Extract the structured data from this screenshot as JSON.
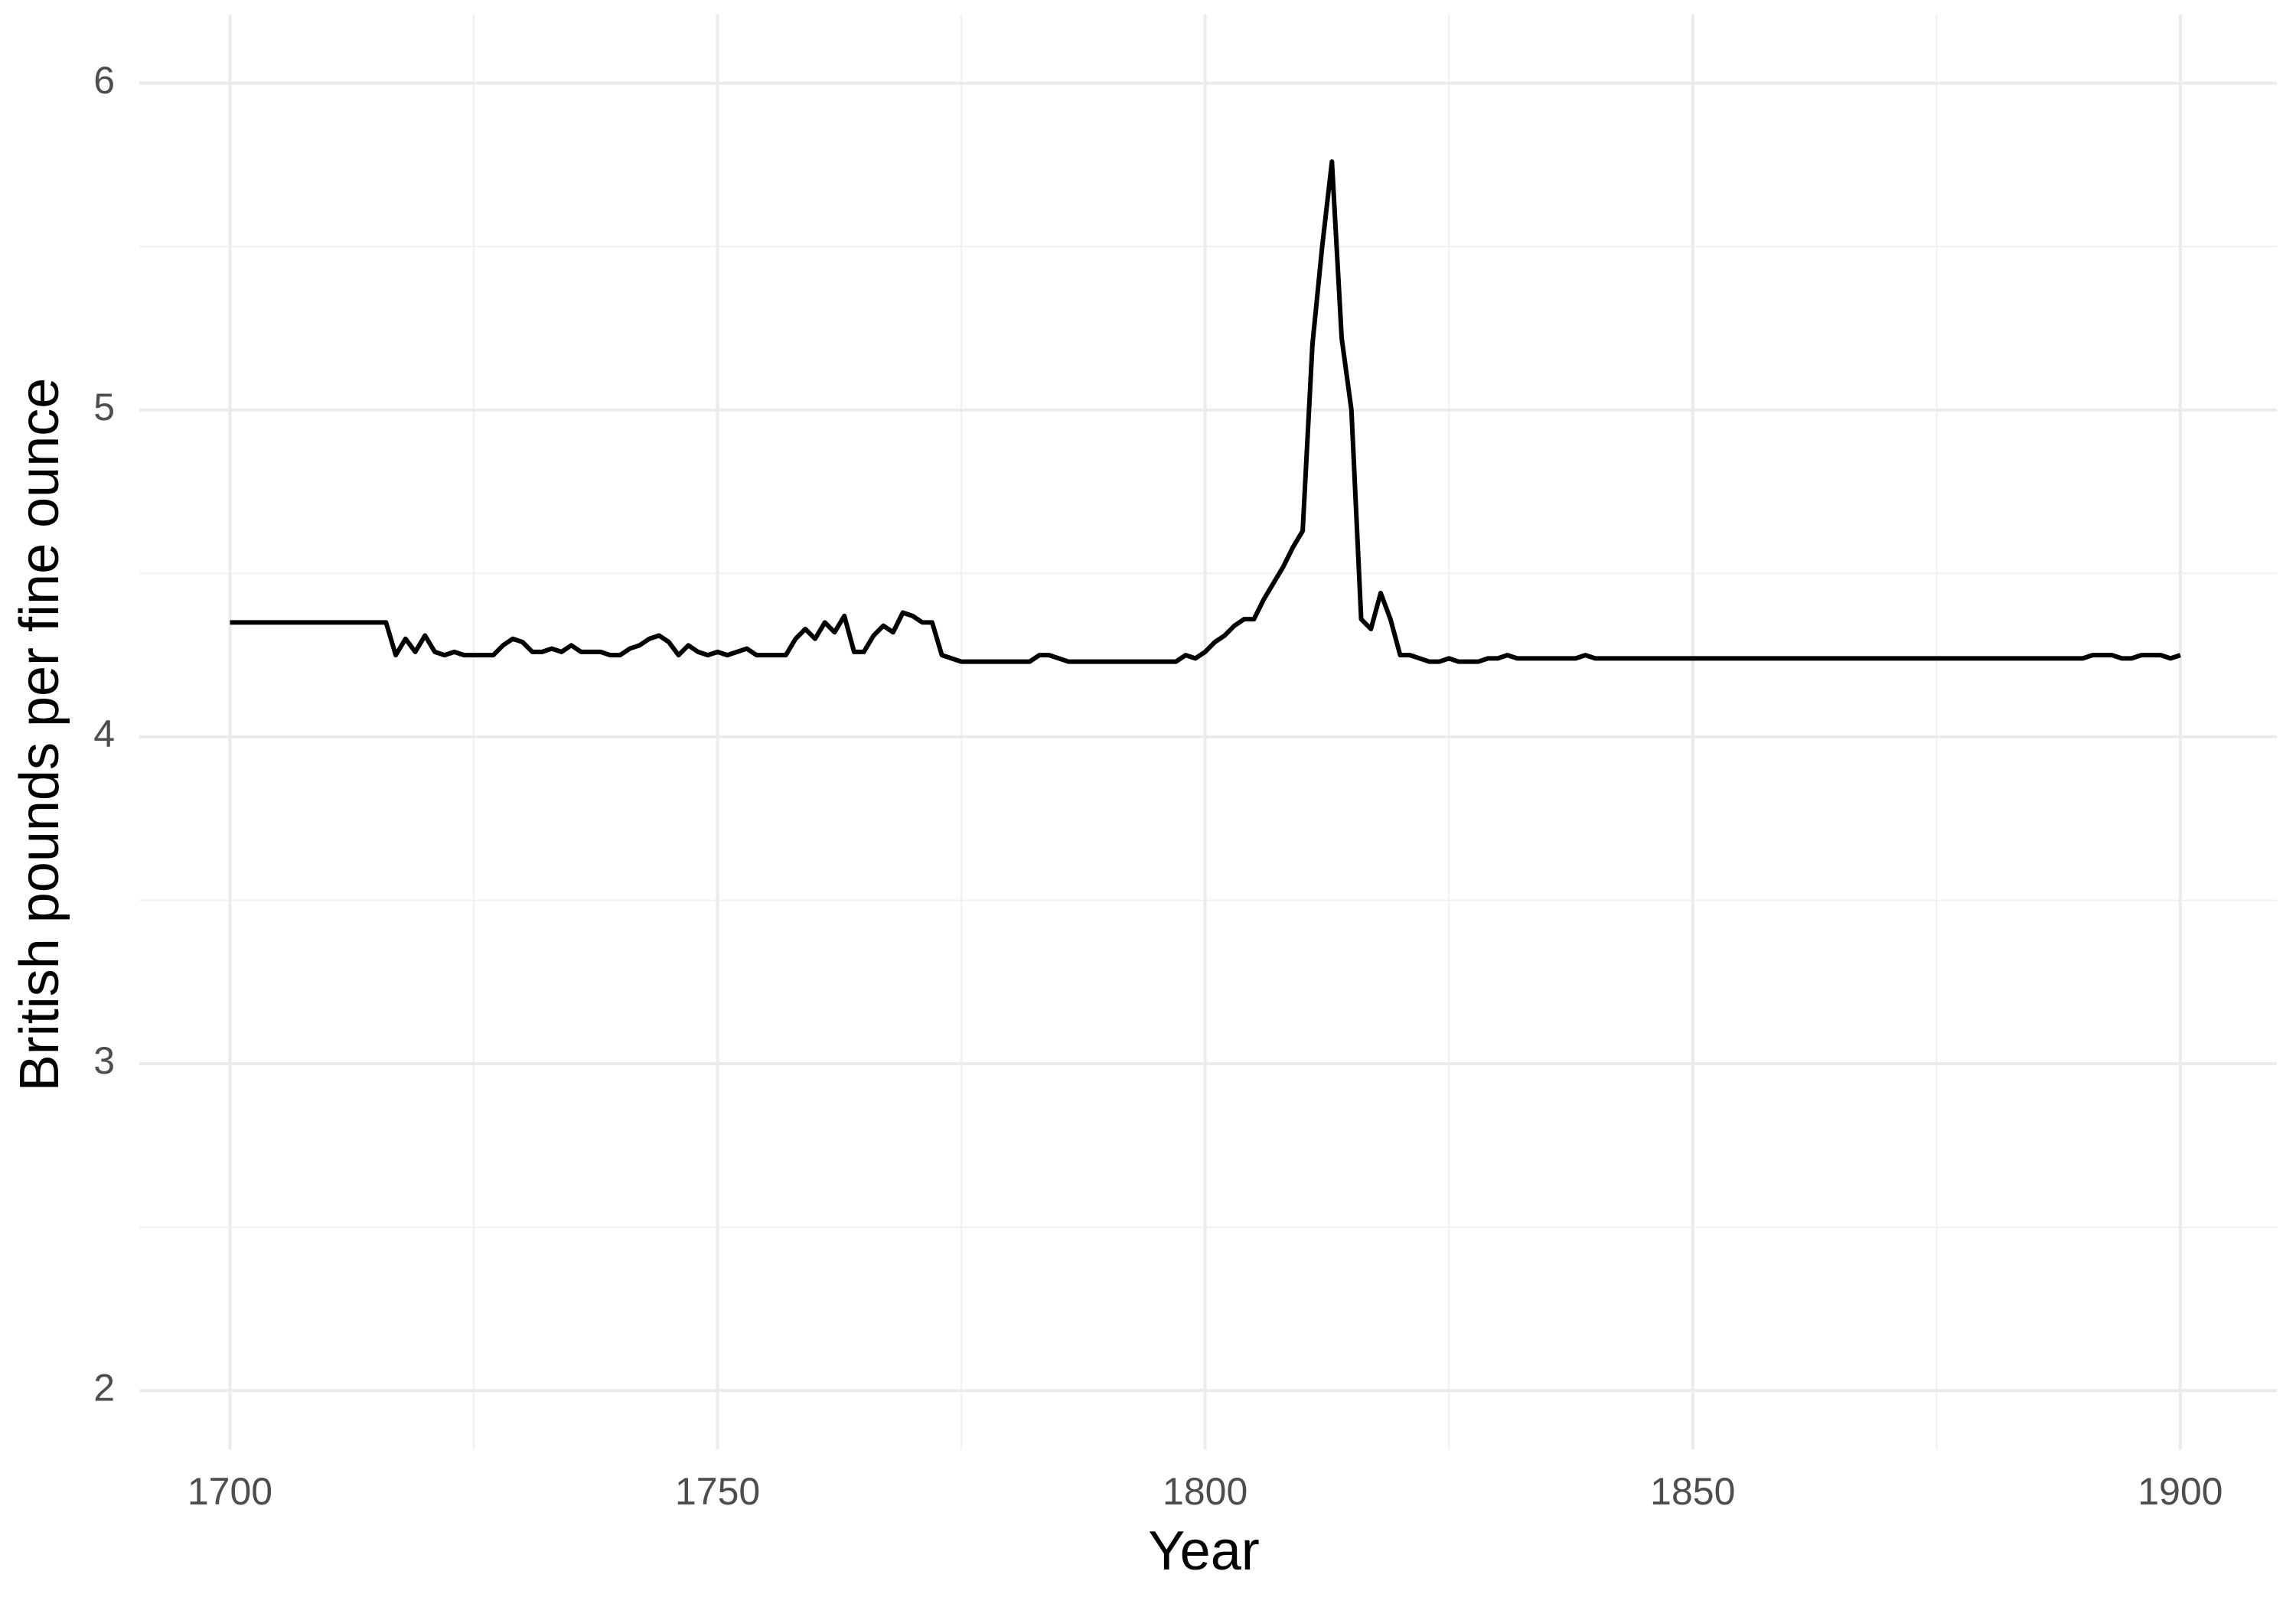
{
  "chart_data": {
    "type": "line",
    "x_label": "Year",
    "y_label": "British pounds per fine ounce",
    "x": [
      1700,
      1701,
      1702,
      1703,
      1704,
      1705,
      1706,
      1707,
      1708,
      1709,
      1710,
      1711,
      1712,
      1713,
      1714,
      1715,
      1716,
      1717,
      1718,
      1719,
      1720,
      1721,
      1722,
      1723,
      1724,
      1725,
      1726,
      1727,
      1728,
      1729,
      1730,
      1731,
      1732,
      1733,
      1734,
      1735,
      1736,
      1737,
      1738,
      1739,
      1740,
      1741,
      1742,
      1743,
      1744,
      1745,
      1746,
      1747,
      1748,
      1749,
      1750,
      1751,
      1752,
      1753,
      1754,
      1755,
      1756,
      1757,
      1758,
      1759,
      1760,
      1761,
      1762,
      1763,
      1764,
      1765,
      1766,
      1767,
      1768,
      1769,
      1770,
      1771,
      1772,
      1773,
      1774,
      1775,
      1776,
      1777,
      1778,
      1779,
      1780,
      1781,
      1782,
      1783,
      1784,
      1785,
      1786,
      1787,
      1788,
      1789,
      1790,
      1791,
      1792,
      1793,
      1794,
      1795,
      1796,
      1797,
      1798,
      1799,
      1800,
      1801,
      1802,
      1803,
      1804,
      1805,
      1806,
      1807,
      1808,
      1809,
      1810,
      1811,
      1812,
      1813,
      1814,
      1815,
      1816,
      1817,
      1818,
      1819,
      1820,
      1821,
      1822,
      1823,
      1824,
      1825,
      1826,
      1827,
      1828,
      1829,
      1830,
      1831,
      1832,
      1833,
      1834,
      1835,
      1836,
      1837,
      1838,
      1839,
      1840,
      1841,
      1842,
      1843,
      1844,
      1845,
      1846,
      1847,
      1848,
      1849,
      1850,
      1851,
      1852,
      1853,
      1854,
      1855,
      1856,
      1857,
      1858,
      1859,
      1860,
      1861,
      1862,
      1863,
      1864,
      1865,
      1866,
      1867,
      1868,
      1869,
      1870,
      1871,
      1872,
      1873,
      1874,
      1875,
      1876,
      1877,
      1878,
      1879,
      1880,
      1881,
      1882,
      1883,
      1884,
      1885,
      1886,
      1887,
      1888,
      1889,
      1890,
      1891,
      1892,
      1893,
      1894,
      1895,
      1896,
      1897,
      1898,
      1899,
      1900
    ],
    "series": [
      {
        "color": "#000000",
        "values": [
          4.35,
          4.35,
          4.35,
          4.35,
          4.35,
          4.35,
          4.35,
          4.35,
          4.35,
          4.35,
          4.35,
          4.35,
          4.35,
          4.35,
          4.35,
          4.35,
          4.35,
          4.25,
          4.3,
          4.26,
          4.31,
          4.26,
          4.25,
          4.26,
          4.25,
          4.25,
          4.25,
          4.25,
          4.28,
          4.3,
          4.29,
          4.26,
          4.26,
          4.27,
          4.26,
          4.28,
          4.26,
          4.26,
          4.26,
          4.25,
          4.25,
          4.27,
          4.28,
          4.3,
          4.31,
          4.29,
          4.25,
          4.28,
          4.26,
          4.25,
          4.26,
          4.25,
          4.26,
          4.27,
          4.25,
          4.25,
          4.25,
          4.25,
          4.3,
          4.33,
          4.3,
          4.35,
          4.32,
          4.37,
          4.26,
          4.26,
          4.31,
          4.34,
          4.32,
          4.38,
          4.37,
          4.35,
          4.35,
          4.25,
          4.24,
          4.23,
          4.23,
          4.23,
          4.23,
          4.23,
          4.23,
          4.23,
          4.23,
          4.25,
          4.25,
          4.24,
          4.23,
          4.23,
          4.23,
          4.23,
          4.23,
          4.23,
          4.23,
          4.23,
          4.23,
          4.23,
          4.23,
          4.23,
          4.25,
          4.24,
          4.26,
          4.29,
          4.31,
          4.34,
          4.36,
          4.36,
          4.42,
          4.47,
          4.52,
          4.58,
          4.63,
          5.2,
          5.5,
          5.76,
          5.22,
          5.0,
          4.36,
          4.33,
          4.44,
          4.36,
          4.25,
          4.25,
          4.24,
          4.23,
          4.23,
          4.24,
          4.23,
          4.23,
          4.23,
          4.24,
          4.24,
          4.25,
          4.24,
          4.24,
          4.24,
          4.24,
          4.24,
          4.24,
          4.24,
          4.25,
          4.24,
          4.24,
          4.24,
          4.24,
          4.24,
          4.24,
          4.24,
          4.24,
          4.24,
          4.24,
          4.24,
          4.24,
          4.24,
          4.24,
          4.24,
          4.24,
          4.24,
          4.24,
          4.24,
          4.24,
          4.24,
          4.24,
          4.24,
          4.24,
          4.24,
          4.24,
          4.24,
          4.24,
          4.24,
          4.24,
          4.24,
          4.24,
          4.24,
          4.24,
          4.24,
          4.24,
          4.24,
          4.24,
          4.24,
          4.24,
          4.24,
          4.24,
          4.24,
          4.24,
          4.24,
          4.24,
          4.24,
          4.24,
          4.24,
          4.24,
          4.24,
          4.25,
          4.25,
          4.25,
          4.24,
          4.24,
          4.25,
          4.25,
          4.25,
          4.24,
          4.25
        ]
      }
    ],
    "xlim": [
      1690.7,
      1909.9
    ],
    "ylim": [
      1.82,
      6.21
    ],
    "xticks": [
      1700,
      1750,
      1800,
      1850,
      1900
    ],
    "yticks": [
      2,
      3,
      4,
      5,
      6
    ],
    "grid": true
  }
}
